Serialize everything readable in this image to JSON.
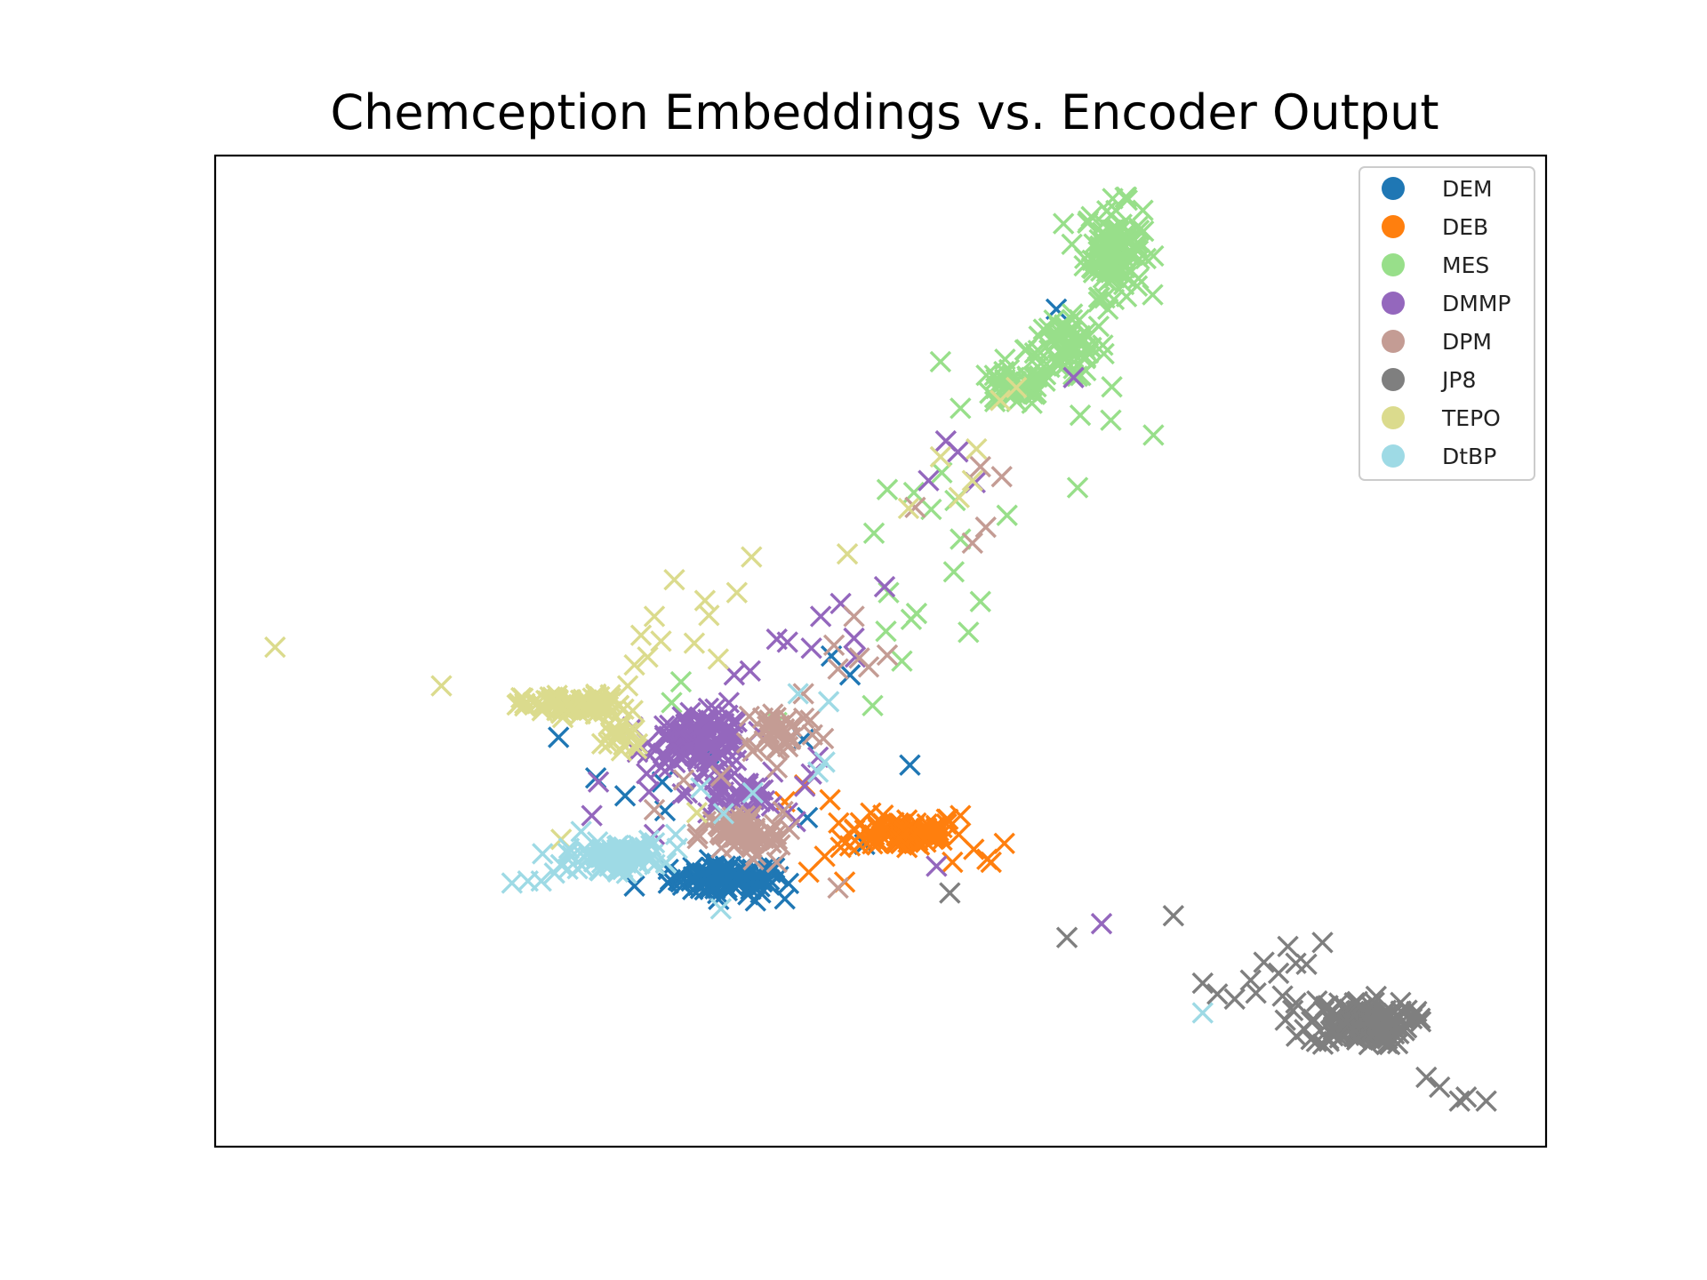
{
  "chart_data": {
    "type": "scatter",
    "title": "Chemception Embeddings vs. Encoder Output",
    "xlabel": "",
    "ylabel": "",
    "axes_ticks": "none",
    "xlim": [
      0,
      100
    ],
    "ylim": [
      0,
      100
    ],
    "grid": false,
    "legend": {
      "placement": "top-right",
      "marker": "circle",
      "entries": [
        "DEM",
        "DEB",
        "MES",
        "DMMP",
        "DPM",
        "JP8",
        "TEPO",
        "DtBP"
      ]
    },
    "colors": {
      "DEM": "#1f77b4",
      "DEB": "#ff7f0e",
      "MES": "#98df8a",
      "DMMP": "#9467bd",
      "DPM": "#c49c94",
      "JP8": "#7f7f7f",
      "TEPO": "#dbdb8d",
      "DtBP": "#9edae5"
    },
    "marker": "x",
    "series": [
      {
        "name": "DEM",
        "clusters": [
          {
            "center": [
              38.5,
              27.0
            ],
            "spread": [
              3.6,
              1.3
            ],
            "count": 90
          }
        ],
        "points": [
          [
            25.8,
            41.3
          ],
          [
            28.6,
            37.2
          ],
          [
            30.8,
            35.4
          ],
          [
            31.5,
            26.3
          ],
          [
            40.6,
            24.8
          ],
          [
            42.8,
            25.0
          ],
          [
            44.5,
            33.2
          ],
          [
            33.6,
            36.8
          ],
          [
            44.2,
            41.1
          ],
          [
            52.2,
            38.5
          ],
          [
            33.8,
            33.9
          ],
          [
            48.8,
            30.5
          ],
          [
            39.5,
            28.0
          ],
          [
            63.2,
            84.5
          ],
          [
            47.7,
            47.6
          ],
          [
            46.3,
            49.5
          ],
          [
            37.1,
            39.7
          ]
        ]
      },
      {
        "name": "DEB",
        "clusters": [
          {
            "center": [
              51.8,
              31.7
            ],
            "spread": [
              3.6,
              1.5
            ],
            "count": 80
          }
        ],
        "points": [
          [
            44.3,
            36.5
          ],
          [
            46.2,
            35.0
          ],
          [
            42.8,
            34.8
          ],
          [
            56.0,
            33.4
          ],
          [
            57.0,
            30.0
          ],
          [
            58.0,
            29.0
          ],
          [
            59.3,
            30.6
          ],
          [
            55.4,
            28.7
          ],
          [
            47.0,
            30.2
          ],
          [
            44.6,
            27.7
          ],
          [
            47.3,
            26.7
          ],
          [
            45.8,
            29.3
          ],
          [
            58.3,
            28.7
          ]
        ]
      },
      {
        "name": "MES",
        "clusters": [
          {
            "center": [
              67.5,
              90.5
            ],
            "spread": [
              1.8,
              3.8
            ],
            "count": 120
          },
          {
            "center": [
              64.0,
              80.5
            ],
            "spread": [
              2.5,
              2.5
            ],
            "count": 70
          },
          {
            "center": [
              60.0,
              76.5
            ],
            "spread": [
              2.5,
              1.5
            ],
            "count": 45
          }
        ],
        "points": [
          [
            70.5,
            71.8
          ],
          [
            64.8,
            66.5
          ],
          [
            59.5,
            63.7
          ],
          [
            56.0,
            74.5
          ],
          [
            52.5,
            66.0
          ],
          [
            50.5,
            66.3
          ],
          [
            54.6,
            68.0
          ],
          [
            55.6,
            65.2
          ],
          [
            53.8,
            64.3
          ],
          [
            56.0,
            61.3
          ],
          [
            49.5,
            61.9
          ],
          [
            50.6,
            55.9
          ],
          [
            52.3,
            53.2
          ],
          [
            51.6,
            49.0
          ],
          [
            50.4,
            52.0
          ],
          [
            49.4,
            44.5
          ],
          [
            42.2,
            42.8
          ],
          [
            35.0,
            46.9
          ],
          [
            34.3,
            44.8
          ],
          [
            52.7,
            53.8
          ],
          [
            67.3,
            73.3
          ],
          [
            64.5,
            78.5
          ],
          [
            54.5,
            79.2
          ],
          [
            65.0,
            73.8
          ],
          [
            38.1,
            33.5
          ],
          [
            56.6,
            51.9
          ],
          [
            55.5,
            58.0
          ],
          [
            57.5,
            55.0
          ]
        ]
      },
      {
        "name": "DMMP",
        "clusters": [
          {
            "center": [
              36.5,
              41.0
            ],
            "spread": [
              3.0,
              2.2
            ],
            "count": 120
          },
          {
            "center": [
              39.0,
              35.5
            ],
            "spread": [
              2.8,
              1.8
            ],
            "count": 35
          }
        ],
        "points": [
          [
            42.2,
            51.2
          ],
          [
            45.5,
            53.5
          ],
          [
            47.0,
            54.8
          ],
          [
            50.3,
            56.5
          ],
          [
            48.0,
            51.3
          ],
          [
            44.8,
            50.3
          ],
          [
            43.0,
            50.9
          ],
          [
            39.0,
            47.6
          ],
          [
            38.6,
            44.8
          ],
          [
            40.2,
            48.0
          ],
          [
            28.8,
            36.8
          ],
          [
            28.3,
            33.4
          ],
          [
            33.0,
            31.5
          ],
          [
            32.6,
            35.8
          ],
          [
            41.9,
            37.8
          ],
          [
            44.8,
            37.6
          ],
          [
            54.9,
            71.2
          ],
          [
            55.8,
            70.1
          ],
          [
            57.1,
            67.0
          ],
          [
            53.6,
            67.2
          ],
          [
            64.5,
            77.6
          ],
          [
            54.2,
            28.3
          ],
          [
            66.6,
            22.5
          ],
          [
            43.6,
            32.8
          ],
          [
            45.3,
            39.3
          ],
          [
            48.1,
            49.4
          ]
        ]
      },
      {
        "name": "DPM",
        "clusters": [
          {
            "center": [
              39.5,
              31.5
            ],
            "spread": [
              2.6,
              1.9
            ],
            "count": 70
          },
          {
            "center": [
              42.5,
              42.0
            ],
            "spread": [
              2.5,
              2.2
            ],
            "count": 35
          }
        ],
        "points": [
          [
            48.0,
            53.5
          ],
          [
            48.4,
            49.3
          ],
          [
            49.1,
            48.4
          ],
          [
            50.5,
            49.6
          ],
          [
            46.5,
            50.6
          ],
          [
            46.8,
            48.2
          ],
          [
            44.2,
            45.7
          ],
          [
            38.0,
            37.4
          ],
          [
            33.0,
            34.0
          ],
          [
            56.9,
            60.9
          ],
          [
            57.9,
            62.5
          ],
          [
            59.1,
            67.6
          ],
          [
            52.6,
            64.5
          ],
          [
            57.5,
            68.6
          ],
          [
            46.8,
            26.1
          ],
          [
            35.2,
            37.0
          ],
          [
            42.2,
            28.7
          ]
        ]
      },
      {
        "name": "JP8",
        "clusters": [
          {
            "center": [
              86.0,
              12.5
            ],
            "spread": [
              3.2,
              1.9
            ],
            "count": 140
          }
        ],
        "points": [
          [
            94.0,
            5.0
          ],
          [
            93.5,
            4.6
          ],
          [
            95.5,
            4.6
          ],
          [
            92.0,
            6.0
          ],
          [
            91.0,
            7.0
          ],
          [
            81.2,
            14.5
          ],
          [
            78.2,
            15.5
          ],
          [
            76.6,
            14.9
          ],
          [
            75.3,
            15.4
          ],
          [
            74.2,
            16.5
          ],
          [
            77.8,
            16.8
          ],
          [
            79.9,
            17.5
          ],
          [
            78.8,
            18.6
          ],
          [
            81.2,
            18.5
          ],
          [
            82.0,
            18.4
          ],
          [
            80.6,
            20.2
          ],
          [
            72.0,
            23.3
          ],
          [
            64.0,
            21.1
          ],
          [
            55.2,
            25.6
          ],
          [
            83.2,
            20.6
          ],
          [
            80.2,
            15.2
          ]
        ]
      },
      {
        "name": "TEPO",
        "clusters": [
          {
            "center": [
              27.0,
              44.5
            ],
            "spread": [
              3.2,
              0.9
            ],
            "count": 90
          },
          {
            "center": [
              30.5,
              41.5
            ],
            "spread": [
              1.5,
              1.6
            ],
            "count": 22
          }
        ],
        "points": [
          [
            4.5,
            50.4
          ],
          [
            17.0,
            46.5
          ],
          [
            34.5,
            57.2
          ],
          [
            32.0,
            51.6
          ],
          [
            33.5,
            51.0
          ],
          [
            36.8,
            55.1
          ],
          [
            37.1,
            53.6
          ],
          [
            39.2,
            55.9
          ],
          [
            40.3,
            59.5
          ],
          [
            36.0,
            50.8
          ],
          [
            37.8,
            49.2
          ],
          [
            33.0,
            53.5
          ],
          [
            32.5,
            49.4
          ],
          [
            31.5,
            48.6
          ],
          [
            31.0,
            46.5
          ],
          [
            52.1,
            64.4
          ],
          [
            54.5,
            69.6
          ],
          [
            57.2,
            70.4
          ],
          [
            55.9,
            65.5
          ],
          [
            59.0,
            75.3
          ],
          [
            60.2,
            76.6
          ],
          [
            56.9,
            67.2
          ],
          [
            47.5,
            59.8
          ],
          [
            26.0,
            31.0
          ],
          [
            36.2,
            33.7
          ]
        ]
      },
      {
        "name": "DtBP",
        "clusters": [
          {
            "center": [
              30.0,
              29.3
            ],
            "spread": [
              3.0,
              1.1
            ],
            "count": 85
          }
        ],
        "points": [
          [
            22.3,
            26.6
          ],
          [
            23.5,
            26.8
          ],
          [
            24.5,
            26.8
          ],
          [
            25.5,
            27.6
          ],
          [
            26.5,
            28.0
          ],
          [
            27.5,
            31.8
          ],
          [
            38.0,
            24.0
          ],
          [
            36.5,
            36.2
          ],
          [
            38.2,
            33.6
          ],
          [
            40.4,
            35.7
          ],
          [
            45.3,
            37.8
          ],
          [
            45.8,
            38.8
          ],
          [
            43.8,
            45.7
          ],
          [
            46.1,
            44.9
          ],
          [
            74.2,
            13.5
          ],
          [
            32.6,
            30.9
          ],
          [
            34.6,
            31.5
          ]
        ]
      }
    ]
  }
}
